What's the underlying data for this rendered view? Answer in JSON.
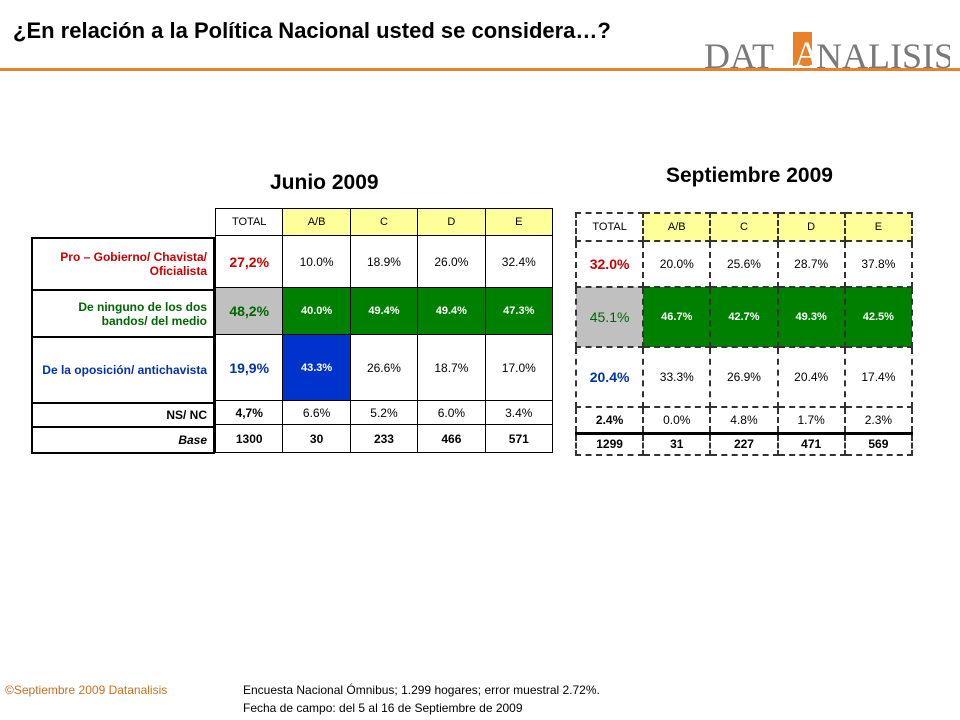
{
  "title": "¿En relación a la Política Nacional usted se considera…?",
  "logo": {
    "text_before": "DAT",
    "text_accent": "A",
    "text_after": "NALISIS"
  },
  "june": {
    "period": "Junio 2009",
    "headers": [
      "TOTAL",
      "A/B",
      "C",
      "D",
      "E"
    ],
    "rows": [
      {
        "label": "Pro – Gobierno/ Chavista/ Oficialista",
        "values": [
          "27,2%",
          "10.0%",
          "18.9%",
          "26.0%",
          "32.4%"
        ]
      },
      {
        "label": "De ninguno de los dos bandos/ del medio",
        "values": [
          "48,2%",
          "40.0%",
          "49.4%",
          "49.4%",
          "47.3%"
        ]
      },
      {
        "label": "De la oposición/ antichavista",
        "values": [
          "19,9%",
          "43.3%",
          "26.6%",
          "18.7%",
          "17.0%"
        ]
      },
      {
        "label": "NS/ NC",
        "values": [
          "4,7%",
          "6.6%",
          "5.2%",
          "6.0%",
          "3.4%"
        ]
      },
      {
        "label": "Base",
        "values": [
          "1300",
          "30",
          "233",
          "466",
          "571"
        ]
      }
    ]
  },
  "september": {
    "period": "Septiembre 2009",
    "headers": [
      "TOTAL",
      "A/B",
      "C",
      "D",
      "E"
    ],
    "rows": [
      {
        "values": [
          "32.0%",
          "20.0%",
          "25.6%",
          "28.7%",
          "37.8%"
        ]
      },
      {
        "values": [
          "45.1%",
          "46.7%",
          "42.7%",
          "49.3%",
          "42.5%"
        ]
      },
      {
        "values": [
          "20.4%",
          "33.3%",
          "26.9%",
          "20.4%",
          "17.4%"
        ]
      },
      {
        "values": [
          "2.4%",
          "0.0%",
          "4.8%",
          "1.7%",
          "2.3%"
        ]
      },
      {
        "values": [
          "1299",
          "31",
          "227",
          "471",
          "569"
        ]
      }
    ]
  },
  "footer": {
    "copyright": "©Septiembre 2009  Datanalisis",
    "survey": "Encuesta Nacional Ómnibus; 1.299 hogares; error muestral 2.72%.",
    "fieldwork": "Fecha de campo: del 5 al 16 de Septiembre de 2009"
  },
  "colors": {
    "accent": "#e8812a",
    "header_fill": "#ffff99",
    "middle_fill": "#008000",
    "opposition_fill": "#0033cc",
    "total_fill": "#c0c0c0"
  }
}
